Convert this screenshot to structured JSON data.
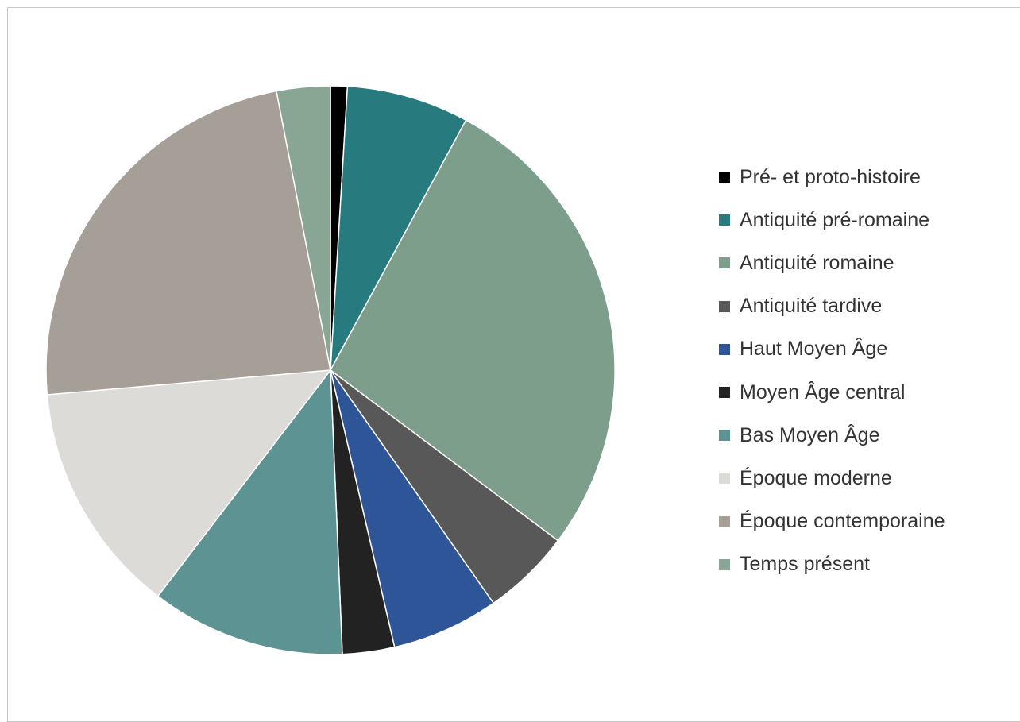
{
  "chart_data": {
    "type": "pie",
    "title": "",
    "legend_position": "right",
    "series": [
      {
        "values": [
          1,
          7.3,
          28.7,
          5.3,
          6.4,
          3.1,
          11.6,
          13.9,
          24.5,
          3.2
        ]
      }
    ],
    "categories": [
      "Pré- et proto-histoire",
      "Antiquité pré-romaine",
      "Antiquité romaine",
      "Antiquité tardive",
      "Haut Moyen Âge",
      "Moyen Âge central",
      "Bas Moyen Âge",
      "Époque moderne",
      "Époque contemporaine",
      "Temps présent"
    ],
    "colors": [
      "#000000",
      "#277A7D",
      "#7D9E8A",
      "#585858",
      "#2E5597",
      "#222222",
      "#5E9394",
      "#DCDBD7",
      "#A69F98",
      "#89A695"
    ]
  }
}
